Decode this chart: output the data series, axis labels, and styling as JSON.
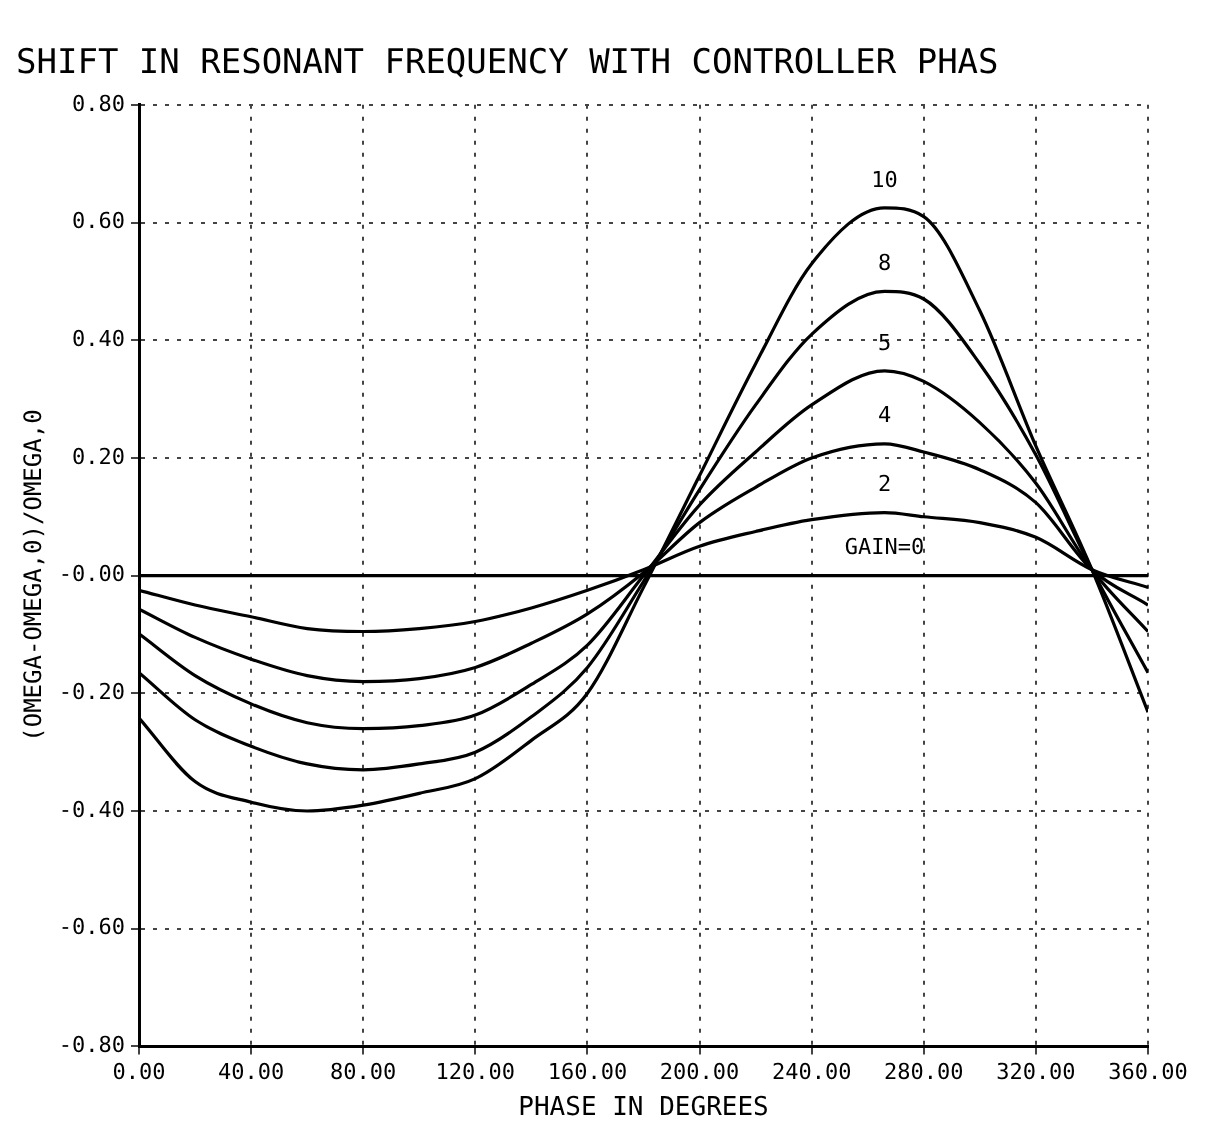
{
  "chart_data": {
    "type": "line",
    "title": "SHIFT IN RESONANT FREQUENCY WITH CONTROLLER PHAS",
    "xlabel": "PHASE IN DEGREES",
    "ylabel": "(OMEGA-OMEGA,0)/OMEGA,0",
    "x": [
      0,
      20,
      40,
      60,
      80,
      100,
      120,
      140,
      160,
      180,
      200,
      220,
      240,
      266,
      280,
      300,
      320,
      340,
      360
    ],
    "series": [
      {
        "name": "GAIN=0",
        "color": "#000000",
        "values": [
          0,
          0,
          0,
          0,
          0,
          0,
          0,
          0,
          0,
          0,
          0,
          0,
          0,
          0,
          0,
          0,
          0,
          0,
          0
        ]
      },
      {
        "name": "2",
        "color": "#000000",
        "values": [
          -0.025,
          -0.05,
          -0.07,
          -0.09,
          -0.095,
          -0.09,
          -0.078,
          -0.055,
          -0.025,
          0.01,
          0.05,
          0.075,
          0.095,
          0.107,
          0.1,
          0.09,
          0.065,
          0.01,
          -0.02
        ]
      },
      {
        "name": "4",
        "color": "#000000",
        "values": [
          -0.057,
          -0.105,
          -0.142,
          -0.17,
          -0.18,
          -0.175,
          -0.156,
          -0.115,
          -0.065,
          0.005,
          0.09,
          0.15,
          0.2,
          0.224,
          0.21,
          0.18,
          0.124,
          0.01,
          -0.05
        ]
      },
      {
        "name": "5",
        "color": "#000000",
        "values": [
          -0.099,
          -0.17,
          -0.218,
          -0.25,
          -0.26,
          -0.255,
          -0.237,
          -0.185,
          -0.118,
          0,
          0.12,
          0.21,
          0.29,
          0.348,
          0.33,
          0.26,
          0.157,
          0.01,
          -0.095
        ]
      },
      {
        "name": "8",
        "color": "#000000",
        "values": [
          -0.165,
          -0.245,
          -0.29,
          -0.32,
          -0.33,
          -0.32,
          -0.3,
          -0.24,
          -0.156,
          -0.01,
          0.146,
          0.29,
          0.41,
          0.483,
          0.47,
          0.36,
          0.205,
          0.01,
          -0.165
        ]
      },
      {
        "name": "10",
        "color": "#000000",
        "values": [
          -0.242,
          -0.35,
          -0.385,
          -0.4,
          -0.39,
          -0.37,
          -0.345,
          -0.28,
          -0.2,
          -0.02,
          0.17,
          0.36,
          0.53,
          0.625,
          0.61,
          0.45,
          0.22,
          0.01,
          -0.232
        ]
      }
    ],
    "xlim": [
      0,
      360
    ],
    "xticks": [
      {
        "value": 0,
        "label": "0.00"
      },
      {
        "value": 40,
        "label": "40.00"
      },
      {
        "value": 80,
        "label": "80.00"
      },
      {
        "value": 120,
        "label": "120.00"
      },
      {
        "value": 160,
        "label": "160.00"
      },
      {
        "value": 200,
        "label": "200.00"
      },
      {
        "value": 240,
        "label": "240.00"
      },
      {
        "value": 280,
        "label": "280.00"
      },
      {
        "value": 320,
        "label": "320.00"
      },
      {
        "value": 360,
        "label": "360.00"
      }
    ],
    "ylim": [
      -0.8,
      0.8
    ],
    "yticks": [
      {
        "value": -0.8,
        "label": "-0.80"
      },
      {
        "value": -0.6,
        "label": "-0.60"
      },
      {
        "value": -0.4,
        "label": "-0.40"
      },
      {
        "value": -0.2,
        "label": "-0.20"
      },
      {
        "value": 0,
        "label": "-0.00"
      },
      {
        "value": 0.2,
        "label": "0.20"
      },
      {
        "value": 0.4,
        "label": "0.40"
      },
      {
        "value": 0.6,
        "label": "0.60"
      },
      {
        "value": 0.8,
        "label": "0.80"
      }
    ],
    "grid": true,
    "legend": false,
    "marker": "none",
    "line_style": "solid"
  }
}
